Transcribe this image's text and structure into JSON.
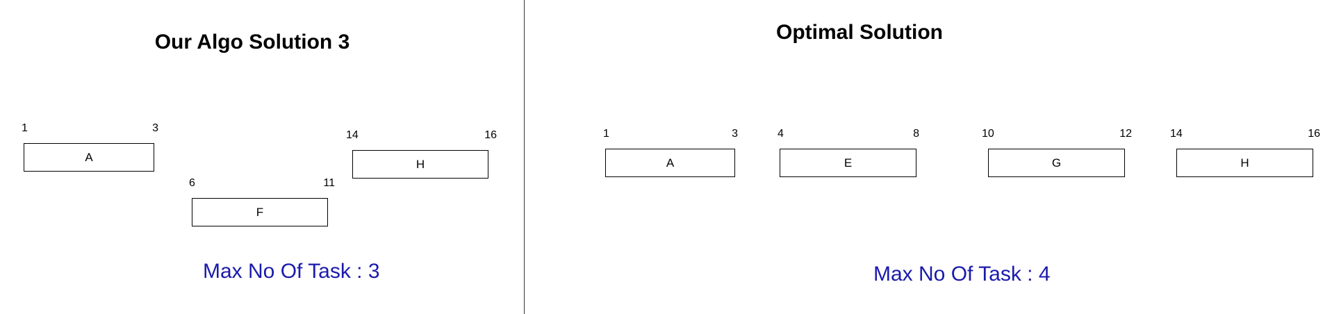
{
  "left_panel": {
    "title": "Our Algo Solution 3",
    "tasks": [
      {
        "label": "A",
        "start": "1",
        "end": "3"
      },
      {
        "label": "F",
        "start": "6",
        "end": "11"
      },
      {
        "label": "H",
        "start": "14",
        "end": "16"
      }
    ],
    "summary_label": "Max No Of Task :",
    "summary_value": "3"
  },
  "right_panel": {
    "title": "Optimal Solution",
    "tasks": [
      {
        "label": "A",
        "start": "1",
        "end": "3"
      },
      {
        "label": "E",
        "start": "4",
        "end": "8"
      },
      {
        "label": "G",
        "start": "10",
        "end": "12"
      },
      {
        "label": "H",
        "start": "14",
        "end": "16"
      }
    ],
    "summary_label": "Max No Of Task :",
    "summary_value": "4"
  },
  "colors": {
    "summary_text": "#1a1aad",
    "box_border": "#000000",
    "divider": "#333333"
  }
}
